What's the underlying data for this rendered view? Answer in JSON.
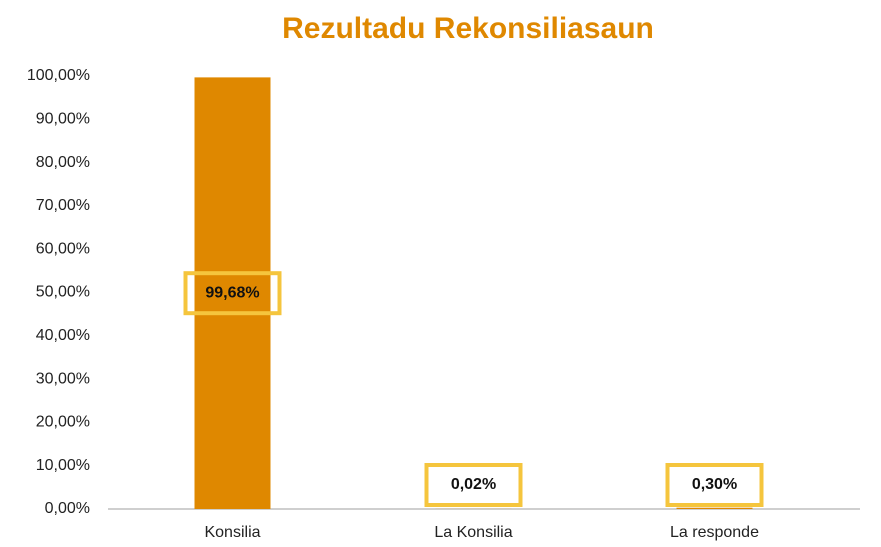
{
  "chart_data": {
    "type": "bar",
    "title": "Rezultadu Rekonsiliasaun",
    "categories": [
      "Konsilia",
      "La Konsilia",
      "La responde"
    ],
    "values": [
      99.68,
      0.02,
      0.3
    ],
    "value_labels": [
      "99,68%",
      "0,02%",
      "0,30%"
    ],
    "color": "#df8800",
    "ylim": [
      0,
      100
    ],
    "yticks": [
      {
        "value": 0,
        "label": "0,00%"
      },
      {
        "value": 10,
        "label": "10,00%"
      },
      {
        "value": 20,
        "label": "20,00%"
      },
      {
        "value": 30,
        "label": "30,00%"
      },
      {
        "value": 40,
        "label": "40,00%"
      },
      {
        "value": 50,
        "label": "50,00%"
      },
      {
        "value": 60,
        "label": "60,00%"
      },
      {
        "value": 70,
        "label": "70,00%"
      },
      {
        "value": 80,
        "label": "80,00%"
      },
      {
        "value": 90,
        "label": "90,00%"
      },
      {
        "value": 100,
        "label": "100,00%"
      }
    ],
    "grid": false
  }
}
